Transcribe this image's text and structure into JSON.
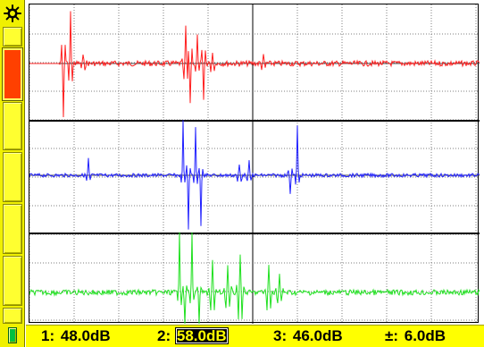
{
  "sidebar": {
    "icon": "gear-icon",
    "buttons": [
      {
        "name": "trace-select-button",
        "active": true
      },
      {
        "name": "menu-button-2",
        "active": false
      },
      {
        "name": "menu-button-3",
        "active": false
      },
      {
        "name": "menu-button-4",
        "active": false
      },
      {
        "name": "menu-button-5",
        "active": false
      },
      {
        "name": "menu-button-6",
        "active": false
      }
    ],
    "battery_icon": "battery-icon"
  },
  "colors": {
    "trace1": "#ff2020",
    "trace2": "#2020ff",
    "trace3": "#20e020",
    "grid": "#7f7f7f",
    "accent": "#ffff00"
  },
  "status": {
    "g1_label": "1:",
    "g1_value": "48.0dB",
    "g2_label": "2:",
    "g2_value": "58.0dB",
    "g3_label": "3:",
    "g3_value": "46.0dB",
    "step_label": "±:",
    "step_value": "6.0dB"
  }
}
